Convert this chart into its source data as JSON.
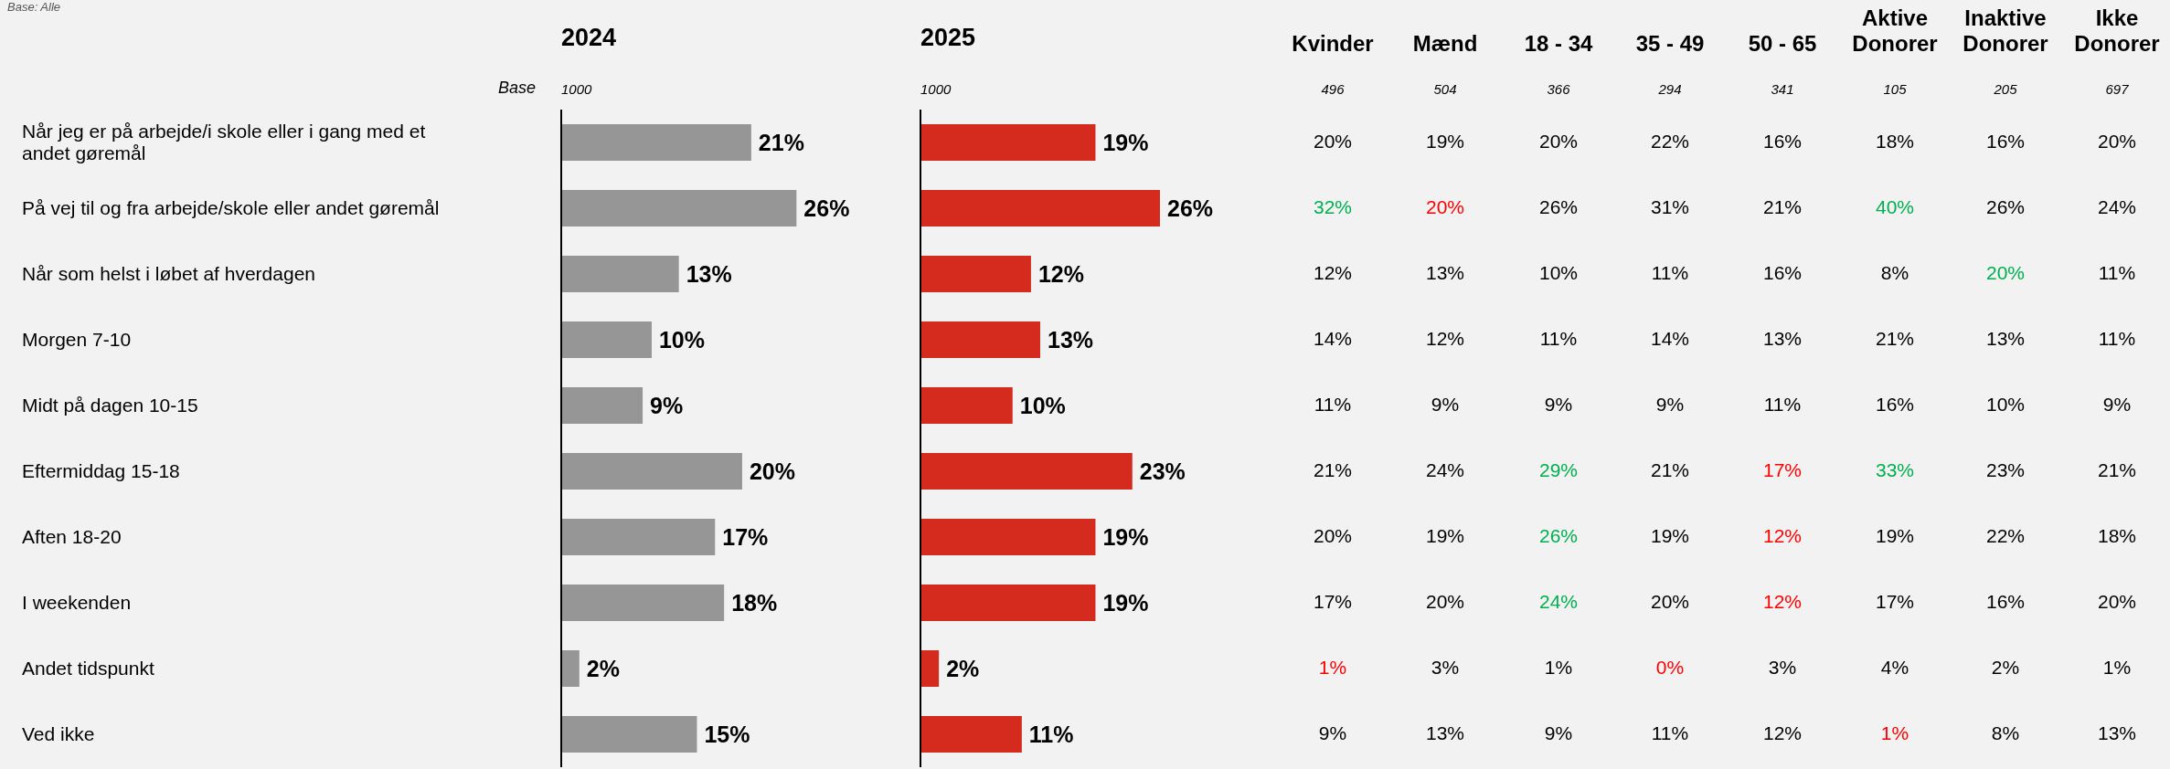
{
  "chart_data": [
    {
      "type": "bar",
      "orientation": "horizontal",
      "title": "2024",
      "subtitle": "1000",
      "annotations": [
        "Base: Alle",
        "Base"
      ],
      "tick_labels": "y",
      "color": "#969696",
      "categories": [
        "Når jeg er på arbejde/i skole eller i gang med et andet gøremål",
        "På vej til og fra arbejde/skole eller andet gøremål",
        "Når som helst i løbet af hverdagen",
        "Morgen 7-10",
        "Midt på dagen 10-15",
        "Eftermiddag 15-18",
        "Aften 18-20",
        "I weekenden",
        "Andet tidspunkt",
        "Ved ikke"
      ],
      "values": [
        21,
        26,
        13,
        10,
        9,
        20,
        17,
        18,
        2,
        15
      ],
      "value_labels": [
        "21%",
        "26%",
        "13%",
        "10%",
        "9%",
        "20%",
        "17%",
        "18%",
        "2%",
        "15%"
      ]
    },
    {
      "type": "bar",
      "orientation": "horizontal",
      "title": "2025",
      "subtitle": "1000",
      "tick_labels": false,
      "color": "#d52b1e",
      "categories": [
        null,
        null,
        null,
        null,
        null,
        null,
        null,
        null,
        null,
        null
      ],
      "values": [
        19,
        26,
        12,
        13,
        10,
        23,
        19,
        19,
        2,
        11
      ],
      "value_labels": [
        "19%",
        "26%",
        "12%",
        "13%",
        "10%",
        "23%",
        "19%",
        "19%",
        "2%",
        "11%"
      ]
    },
    {
      "type": "heatmap",
      "tick_labels": "x",
      "categories": [
        "Kvinder",
        "Mænd",
        "18 - 34",
        "35 - 49",
        "50 - 65",
        "Aktive Donorer",
        "Inaktive Donorer",
        "Ikke Donorer"
      ],
      "annotations": [
        "496",
        "504",
        "366",
        "294",
        "341",
        "105",
        "205",
        "697"
      ],
      "y_categories": [
        null,
        null,
        null,
        null,
        null,
        null,
        null,
        null,
        null,
        null
      ],
      "cells": [
        [
          20,
          19,
          20,
          22,
          16,
          18,
          16,
          20
        ],
        [
          32,
          20,
          26,
          31,
          21,
          40,
          26,
          24
        ],
        [
          12,
          13,
          10,
          11,
          16,
          8,
          20,
          11
        ],
        [
          14,
          12,
          11,
          14,
          13,
          21,
          13,
          11
        ],
        [
          11,
          9,
          9,
          9,
          11,
          16,
          10,
          9
        ],
        [
          21,
          24,
          29,
          21,
          17,
          33,
          23,
          21
        ],
        [
          20,
          19,
          26,
          19,
          12,
          19,
          22,
          18
        ],
        [
          17,
          20,
          24,
          20,
          12,
          17,
          16,
          20
        ],
        [
          1,
          3,
          1,
          0,
          3,
          4,
          2,
          1
        ],
        [
          9,
          13,
          9,
          11,
          12,
          1,
          8,
          13
        ]
      ],
      "cell_labels": [
        [
          "20%",
          "19%",
          "20%",
          "22%",
          "16%",
          "18%",
          "16%",
          "20%"
        ],
        [
          "32%",
          "20%",
          "26%",
          "31%",
          "21%",
          "40%",
          "26%",
          "24%"
        ],
        [
          "12%",
          "13%",
          "10%",
          "11%",
          "16%",
          "8%",
          "20%",
          "11%"
        ],
        [
          "14%",
          "12%",
          "11%",
          "14%",
          "13%",
          "21%",
          "13%",
          "11%"
        ],
        [
          "11%",
          "9%",
          "9%",
          "9%",
          "11%",
          "16%",
          "10%",
          "9%"
        ],
        [
          "21%",
          "24%",
          "29%",
          "21%",
          "17%",
          "33%",
          "23%",
          "21%"
        ],
        [
          "20%",
          "19%",
          "26%",
          "19%",
          "12%",
          "19%",
          "22%",
          "18%"
        ],
        [
          "17%",
          "20%",
          "24%",
          "20%",
          "12%",
          "17%",
          "16%",
          "20%"
        ],
        [
          "1%",
          "3%",
          "1%",
          "0%",
          "3%",
          "4%",
          "2%",
          "1%"
        ],
        [
          "9%",
          "13%",
          "9%",
          "11%",
          "12%",
          "1%",
          "8%",
          "13%"
        ]
      ],
      "colors": [
        [
          "#000000",
          "#000000",
          "#000000",
          "#000000",
          "#000000",
          "#000000",
          "#000000",
          "#000000"
        ],
        [
          "#00b050",
          "#ff0000",
          "#000000",
          "#000000",
          "#000000",
          "#00b050",
          "#000000",
          "#000000"
        ],
        [
          "#000000",
          "#000000",
          "#000000",
          "#000000",
          "#000000",
          "#000000",
          "#00b050",
          "#000000"
        ],
        [
          "#000000",
          "#000000",
          "#000000",
          "#000000",
          "#000000",
          "#000000",
          "#000000",
          "#000000"
        ],
        [
          "#000000",
          "#000000",
          "#000000",
          "#000000",
          "#000000",
          "#000000",
          "#000000",
          "#000000"
        ],
        [
          "#000000",
          "#000000",
          "#00b050",
          "#000000",
          "#ff0000",
          "#00b050",
          "#000000",
          "#000000"
        ],
        [
          "#000000",
          "#000000",
          "#00b050",
          "#000000",
          "#ff0000",
          "#000000",
          "#000000",
          "#000000"
        ],
        [
          "#000000",
          "#000000",
          "#00b050",
          "#000000",
          "#ff0000",
          "#000000",
          "#000000",
          "#000000"
        ],
        [
          "#ff0000",
          "#000000",
          "#000000",
          "#ff0000",
          "#000000",
          "#000000",
          "#000000",
          "#000000"
        ],
        [
          "#000000",
          "#000000",
          "#000000",
          "#000000",
          "#000000",
          "#ff0000",
          "#000000",
          "#000000"
        ]
      ]
    }
  ]
}
